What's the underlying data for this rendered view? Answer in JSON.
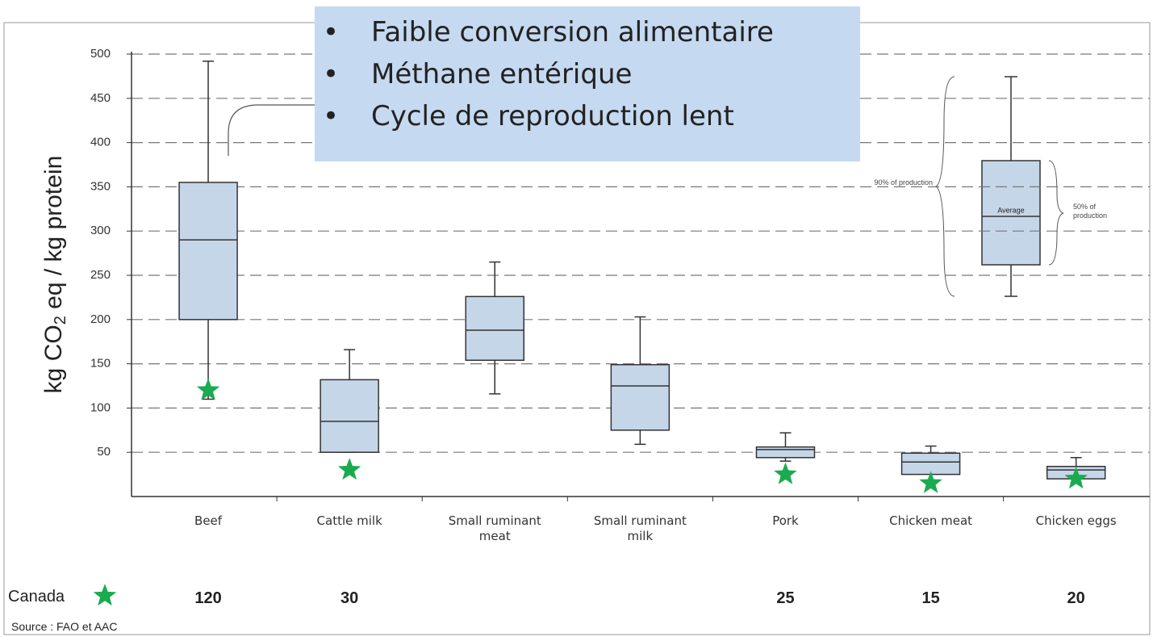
{
  "chart_data": {
    "type": "box",
    "y_label": {
      "main": "kg CO",
      "sub": "2",
      "rest": " eq / kg protein"
    },
    "categories": [
      "Beef",
      "Cattle milk",
      "Small ruminant meat",
      "Small ruminant milk",
      "Pork",
      "Chicken meat",
      "Chicken eggs"
    ],
    "low": [
      110,
      50,
      116,
      59,
      40,
      18,
      16
    ],
    "q1": [
      200,
      50,
      154,
      75,
      44,
      25,
      20
    ],
    "median": [
      290,
      85,
      188,
      125,
      53,
      39,
      30
    ],
    "q3": [
      355,
      132,
      226,
      149,
      56,
      49,
      34
    ],
    "high": [
      492,
      166,
      265,
      203,
      72,
      57,
      44
    ],
    "color": "#c5d6e8",
    "ylim": [
      0,
      500
    ],
    "yticks": [
      50,
      100,
      150,
      200,
      250,
      300,
      350,
      400,
      450,
      500
    ],
    "grid": true,
    "canada_label": "Canada",
    "canada_values": [
      120,
      30,
      null,
      null,
      25,
      15,
      20
    ],
    "canada_color": "#1aab50",
    "legend_inset": {
      "outer": "90% of production",
      "middle": "Average",
      "inner": "50% of production"
    },
    "bullets": [
      "Faible conversion alimentaire",
      "Méthane entérique",
      "Cycle de reproduction lent"
    ],
    "source": "Source : FAO et AAC"
  }
}
